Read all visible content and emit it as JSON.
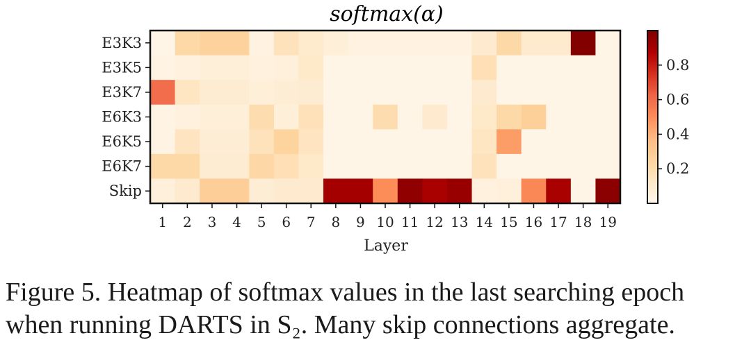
{
  "chart_data": {
    "type": "heatmap",
    "title": "softmax(α)",
    "xlabel": "Layer",
    "ylabel": "",
    "x_categories": [
      "1",
      "2",
      "3",
      "4",
      "5",
      "6",
      "7",
      "8",
      "9",
      "10",
      "11",
      "12",
      "13",
      "14",
      "15",
      "16",
      "17",
      "18",
      "19"
    ],
    "y_categories": [
      "E3K3",
      "E3K5",
      "E3K7",
      "E6K3",
      "E6K5",
      "E6K7",
      "Skip"
    ],
    "values": [
      [
        0.02,
        0.22,
        0.26,
        0.26,
        0.04,
        0.16,
        0.11,
        0.07,
        0.04,
        0.04,
        0.04,
        0.04,
        0.04,
        0.1,
        0.22,
        0.11,
        0.11,
        0.99,
        0.02
      ],
      [
        0.03,
        0.05,
        0.07,
        0.07,
        0.05,
        0.06,
        0.12,
        0.02,
        0.02,
        0.02,
        0.02,
        0.02,
        0.02,
        0.18,
        0.02,
        0.02,
        0.02,
        0.02,
        0.02
      ],
      [
        0.6,
        0.14,
        0.09,
        0.09,
        0.07,
        0.08,
        0.09,
        0.02,
        0.02,
        0.02,
        0.02,
        0.02,
        0.02,
        0.1,
        0.02,
        0.02,
        0.02,
        0.02,
        0.02
      ],
      [
        0.03,
        0.05,
        0.07,
        0.07,
        0.2,
        0.07,
        0.17,
        0.02,
        0.02,
        0.2,
        0.02,
        0.1,
        0.02,
        0.12,
        0.22,
        0.27,
        0.02,
        0.02,
        0.02
      ],
      [
        0.03,
        0.15,
        0.08,
        0.08,
        0.16,
        0.25,
        0.15,
        0.02,
        0.02,
        0.02,
        0.02,
        0.02,
        0.02,
        0.14,
        0.46,
        0.02,
        0.02,
        0.02,
        0.02
      ],
      [
        0.22,
        0.22,
        0.09,
        0.09,
        0.23,
        0.18,
        0.12,
        0.02,
        0.02,
        0.02,
        0.02,
        0.02,
        0.02,
        0.16,
        0.02,
        0.02,
        0.02,
        0.02,
        0.02
      ],
      [
        0.06,
        0.1,
        0.28,
        0.28,
        0.08,
        0.1,
        0.1,
        0.91,
        0.91,
        0.5,
        0.96,
        0.9,
        0.94,
        0.05,
        0.06,
        0.52,
        0.9,
        0.02,
        0.97
      ]
    ],
    "colorbar": {
      "range": [
        0.0,
        1.0
      ],
      "ticks": [
        "0.2",
        "0.4",
        "0.6",
        "0.8"
      ],
      "tick_values": [
        0.2,
        0.4,
        0.6,
        0.8
      ],
      "colormap": "OrRd"
    },
    "grid": false
  },
  "caption": {
    "line1": "Figure 5. Heatmap of softmax values in the last searching epoch",
    "line2": "when running DARTS in S₂. Many skip connections aggregate."
  }
}
